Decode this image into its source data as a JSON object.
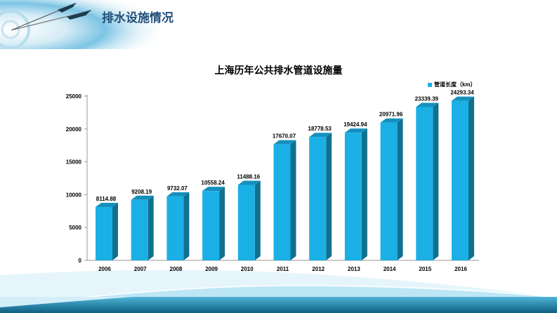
{
  "slide": {
    "title": "排水设施情况"
  },
  "colors": {
    "bar_front": "#1ab0e6",
    "bar_side": "#10718f",
    "bar_top": "#1590bd",
    "title": "#1f4e79"
  },
  "chart_data": {
    "type": "bar",
    "title": "上海历年公共排水管道设施量",
    "categories": [
      "2006",
      "2007",
      "2008",
      "2009",
      "2010",
      "2011",
      "2012",
      "2013",
      "2014",
      "2015",
      "2016"
    ],
    "series": [
      {
        "name": "管道长度（km）",
        "values": [
          8114.88,
          9208.19,
          9732.07,
          10558.24,
          11488.16,
          17670.07,
          18778.53,
          19424.94,
          20971.96,
          23339.39,
          24293.34
        ]
      }
    ],
    "data_labels": [
      "8114.88",
      "9208.19",
      "9732.07",
      "10558.24",
      "11488.16",
      "17670.07",
      "18778.53",
      "19424.94",
      "20971.96",
      "23339.39",
      "24293.34"
    ],
    "yticks": [
      "0",
      "5000",
      "10000",
      "15000",
      "20000",
      "25000"
    ],
    "ylim": [
      0,
      25000
    ],
    "xlabel": "",
    "ylabel": "",
    "legend": "top-right",
    "grid": false,
    "style": "3d-column"
  }
}
